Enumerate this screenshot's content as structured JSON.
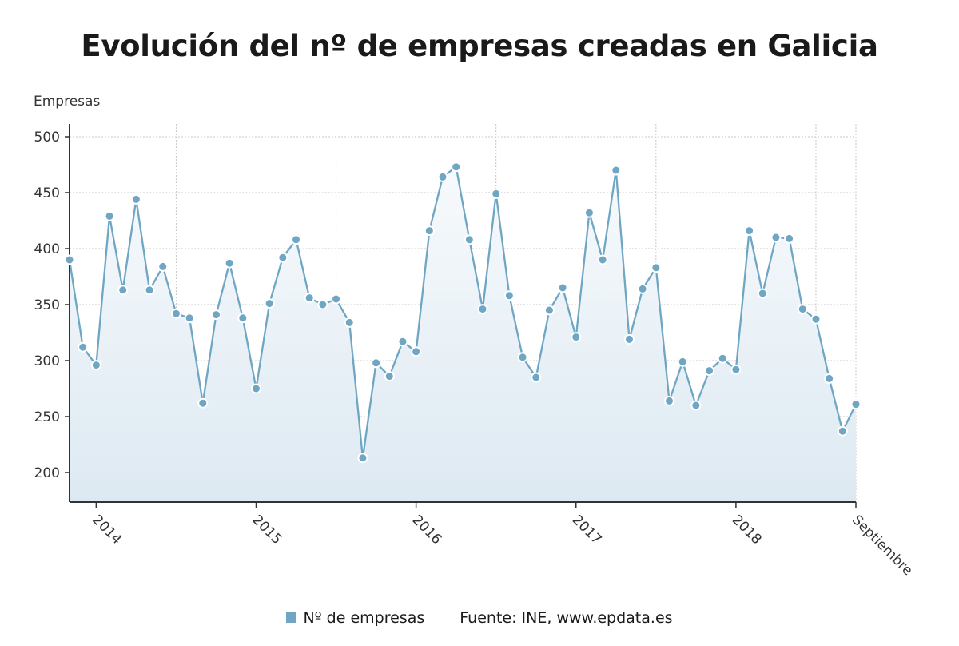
{
  "title": "Evolución del nº de empresas creadas en Galicia",
  "legend": {
    "series_label": "Nº de empresas",
    "source": "Fuente: INE, www.epdata.es"
  },
  "colors": {
    "line": "#6fa6c3",
    "marker_fill": "#6fa6c3",
    "marker_stroke": "#ffffff",
    "grid": "#c8c8c8",
    "area_top": "#f7fafc",
    "area_bottom": "#dde9f2"
  },
  "chart_data": {
    "type": "line",
    "title": "Evolución del nº de empresas creadas en Galicia",
    "ylabel": "Empresas",
    "xlabel": "",
    "ylim": [
      175,
      512
    ],
    "yticks": [
      200,
      250,
      300,
      350,
      400,
      450,
      500
    ],
    "x_tick_labels": [
      "2014",
      "2015",
      "2016",
      "2017",
      "2018",
      "Septiembre"
    ],
    "grid": true,
    "legend_position": "bottom",
    "x": [
      "2013-11",
      "2013-12",
      "2014-01",
      "2014-02",
      "2014-03",
      "2014-04",
      "2014-05",
      "2014-06",
      "2014-07",
      "2014-08",
      "2014-09",
      "2014-10",
      "2014-11",
      "2014-12",
      "2015-01",
      "2015-02",
      "2015-03",
      "2015-04",
      "2015-05",
      "2015-06",
      "2015-07",
      "2015-08",
      "2015-09",
      "2015-10",
      "2015-11",
      "2015-12",
      "2016-01",
      "2016-02",
      "2016-03",
      "2016-04",
      "2016-05",
      "2016-06",
      "2016-07",
      "2016-08",
      "2016-09",
      "2016-10",
      "2016-11",
      "2016-12",
      "2017-01",
      "2017-02",
      "2017-03",
      "2017-04",
      "2017-05",
      "2017-06",
      "2017-07",
      "2017-08",
      "2017-09",
      "2017-10",
      "2017-11",
      "2017-12",
      "2018-01",
      "2018-02",
      "2018-03",
      "2018-04",
      "2018-05",
      "2018-06",
      "2018-07",
      "2018-08",
      "2018-09",
      "2018-10"
    ],
    "series": [
      {
        "name": "Nº de empresas",
        "values": [
          390,
          312,
          296,
          429,
          363,
          444,
          363,
          384,
          342,
          338,
          262,
          341,
          387,
          338,
          275,
          351,
          392,
          408,
          356,
          350,
          355,
          334,
          213,
          298,
          286,
          317,
          308,
          416,
          464,
          473,
          408,
          346,
          449,
          358,
          303,
          285,
          345,
          365,
          321,
          432,
          390,
          470,
          319,
          364,
          383,
          264,
          299,
          260,
          291,
          302,
          292,
          416,
          360,
          410,
          409,
          346,
          337,
          284,
          237,
          261
        ]
      }
    ]
  }
}
